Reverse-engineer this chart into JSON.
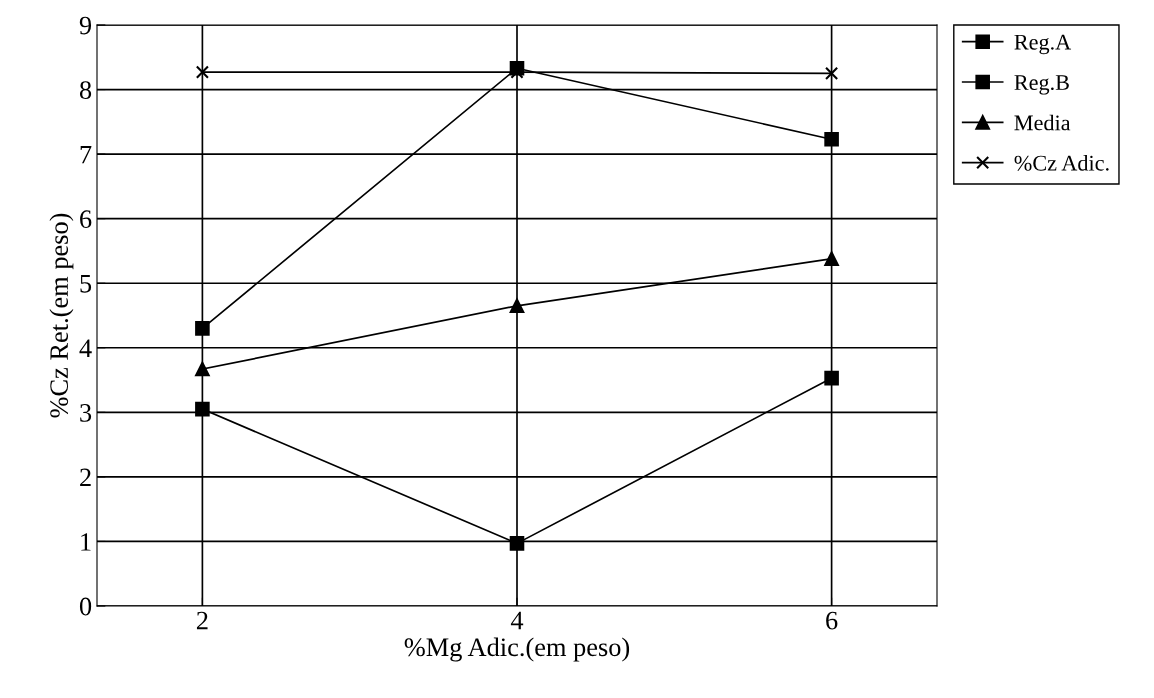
{
  "chart_data": {
    "type": "line",
    "xlabel": "%Mg Adic.(em peso)",
    "ylabel": "%Cz Ret.(em peso)",
    "x": [
      2,
      4,
      6
    ],
    "xlim": [
      1.33,
      6.67
    ],
    "xticks": [
      2,
      4,
      6
    ],
    "ylim": [
      0,
      9
    ],
    "yticks": [
      0,
      1,
      2,
      3,
      4,
      5,
      6,
      7,
      8,
      9
    ],
    "grid": true,
    "legend": "right",
    "series": [
      {
        "name": "Reg.A",
        "color": "#000000",
        "marker": "square",
        "values": [
          4.3,
          8.33,
          7.23
        ]
      },
      {
        "name": "Reg.B",
        "color": "#000000",
        "marker": "square",
        "values": [
          3.05,
          0.97,
          3.53
        ]
      },
      {
        "name": "Media",
        "color": "#000000",
        "marker": "triangle",
        "values": [
          3.67,
          4.65,
          5.38
        ]
      },
      {
        "name": "%Cz Adic.",
        "color": "#000000",
        "marker": "cross",
        "values": [
          8.27,
          8.27,
          8.25
        ]
      }
    ]
  }
}
